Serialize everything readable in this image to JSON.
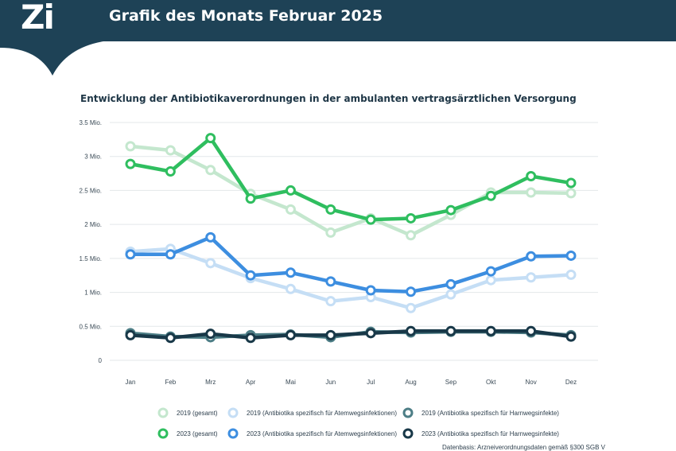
{
  "header": {
    "logo": "Zi",
    "title": "Grafik des Monats Februar 2025"
  },
  "colors": {
    "banner": "#1e4256",
    "s2019_total": "#c4e7ce",
    "s2023_total": "#2fbe5f",
    "s2019_resp": "#c5def5",
    "s2023_resp": "#3d8ee0",
    "s2019_uti": "#4d7e86",
    "s2023_uti": "#183848"
  },
  "chart_data": {
    "type": "line",
    "title": "Entwicklung der Antibiotikaverordnungen in der ambulanten vertragsärztlichen Versorgung",
    "xlabel": "",
    "ylabel": "",
    "categories": [
      "Jan",
      "Feb",
      "Mrz",
      "Apr",
      "Mai",
      "Jun",
      "Jul",
      "Aug",
      "Sep",
      "Okt",
      "Nov",
      "Dez"
    ],
    "y_ticks": [
      {
        "value": 0,
        "label": "0"
      },
      {
        "value": 0.5,
        "label": "0.5 Mio."
      },
      {
        "value": 1,
        "label": "1 Mio."
      },
      {
        "value": 1.5,
        "label": "1.5 Mio."
      },
      {
        "value": 2,
        "label": "2 Mio."
      },
      {
        "value": 2.5,
        "label": "2.5 Mio."
      },
      {
        "value": 3,
        "label": "3 Mio."
      },
      {
        "value": 3.5,
        "label": "3.5 Mio."
      }
    ],
    "ylim": [
      0,
      3.5
    ],
    "grid": true,
    "legend_position": "bottom",
    "series": [
      {
        "name": "2019 (gesamt)",
        "color": "#c4e7ce",
        "values": [
          3.15,
          3.09,
          2.8,
          2.45,
          2.22,
          1.88,
          2.09,
          1.84,
          2.14,
          2.47,
          2.47,
          2.46
        ]
      },
      {
        "name": "2019 (Antibiotika spezifisch für Atemwegsinfektionen)",
        "color": "#c5def5",
        "values": [
          1.6,
          1.64,
          1.43,
          1.21,
          1.05,
          0.87,
          0.93,
          0.77,
          0.97,
          1.18,
          1.22,
          1.26
        ]
      },
      {
        "name": "2019 (Antibiotika spezifisch für Harnwegsinfekte)",
        "color": "#4d7e86",
        "values": [
          0.4,
          0.35,
          0.34,
          0.37,
          0.38,
          0.34,
          0.42,
          0.41,
          0.42,
          0.42,
          0.41,
          0.37
        ]
      },
      {
        "name": "2023 (gesamt)",
        "color": "#2fbe5f",
        "values": [
          2.89,
          2.78,
          3.27,
          2.38,
          2.5,
          2.22,
          2.07,
          2.09,
          2.21,
          2.42,
          2.71,
          2.61
        ]
      },
      {
        "name": "2023 (Antibiotika spezifisch für Atemwegsinfektionen)",
        "color": "#3d8ee0",
        "values": [
          1.56,
          1.56,
          1.81,
          1.25,
          1.29,
          1.16,
          1.03,
          1.01,
          1.12,
          1.31,
          1.53,
          1.54
        ]
      },
      {
        "name": "2023 (Antibiotika spezifisch für Harnwegsinfekte)",
        "color": "#183848",
        "values": [
          0.37,
          0.33,
          0.39,
          0.33,
          0.37,
          0.37,
          0.4,
          0.43,
          0.43,
          0.43,
          0.43,
          0.35
        ]
      }
    ]
  },
  "legend": [
    {
      "label": "2019 (gesamt)",
      "color": "#c4e7ce"
    },
    {
      "label": "2019 (Antibiotika spezifisch für Atemwegsinfektionen)",
      "color": "#c5def5"
    },
    {
      "label": "2019 (Antibiotika spezifisch für Harnwegsinfekte)",
      "color": "#4d7e86"
    },
    {
      "label": "2023 (gesamt)",
      "color": "#2fbe5f"
    },
    {
      "label": "2023 (Antibiotika spezifisch für Atemwegsinfektionen)",
      "color": "#3d8ee0"
    },
    {
      "label": "2023 (Antibiotika spezifisch für Harnwegsinfekte)",
      "color": "#183848"
    }
  ],
  "footer": {
    "source": "Datenbasis: Arzneiverordnungsdaten gemäß §300 SGB V"
  }
}
